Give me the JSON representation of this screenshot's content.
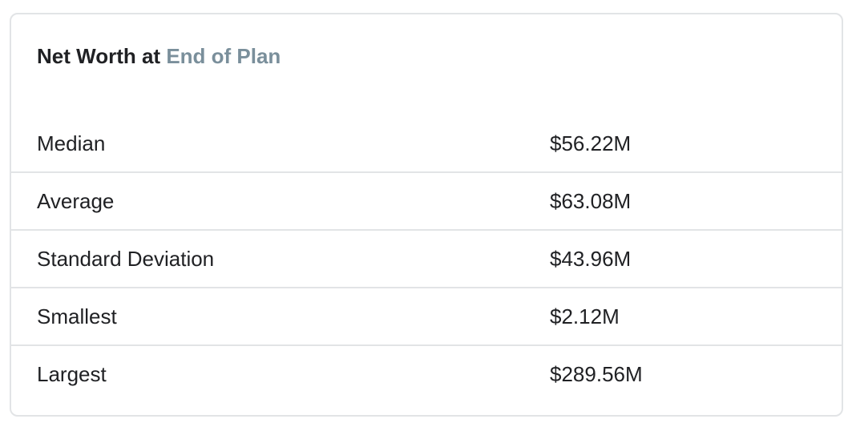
{
  "card": {
    "title_prefix": "Net Worth at",
    "title_accent": "End of Plan",
    "accent_color": "#7a8f9b"
  },
  "stats": [
    {
      "label": "Median",
      "value": "$56.22M"
    },
    {
      "label": "Average",
      "value": "$63.08M"
    },
    {
      "label": "Standard Deviation",
      "value": "$43.96M"
    },
    {
      "label": "Smallest",
      "value": "$2.12M"
    },
    {
      "label": "Largest",
      "value": "$289.56M"
    }
  ]
}
